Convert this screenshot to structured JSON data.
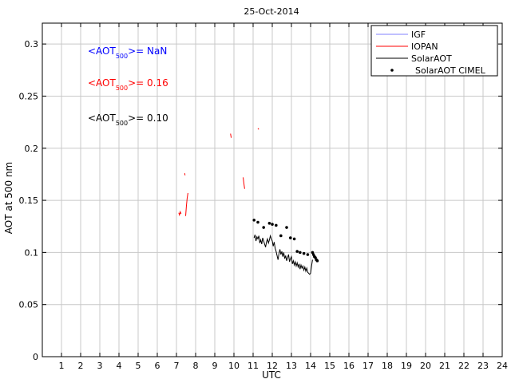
{
  "chart_data": {
    "type": "line",
    "title": "25-Oct-2014",
    "xlabel": "UTC",
    "ylabel": "AOT at 500 nm",
    "xlim": [
      0,
      24
    ],
    "ylim": [
      0,
      0.32
    ],
    "grid": true,
    "x_ticks": [
      1,
      2,
      3,
      4,
      5,
      6,
      7,
      8,
      9,
      10,
      11,
      12,
      13,
      14,
      15,
      16,
      17,
      18,
      19,
      20,
      21,
      22,
      23,
      24
    ],
    "y_ticks": [
      0,
      0.05,
      0.1,
      0.15,
      0.2,
      0.25,
      0.3
    ],
    "y_tick_labels": [
      "0",
      "0.05",
      "0.1",
      "0.15",
      "0.2",
      "0.25",
      "0.3"
    ],
    "legend_position": "top-right",
    "legend": [
      {
        "label": "IGF",
        "color": "#8080ff",
        "style": "line"
      },
      {
        "label": "IOPAN",
        "color": "#ff0000",
        "style": "line"
      },
      {
        "label": "SolarAOT",
        "color": "#000000",
        "style": "line"
      },
      {
        "label": "SolarAOT CIMEL",
        "color": "#000000",
        "style": "dot"
      }
    ],
    "annotations": [
      {
        "prefix": "<AOT",
        "sub": "500",
        "suffix": ">=  NaN",
        "color": "#0000ff"
      },
      {
        "prefix": "<AOT",
        "sub": "500",
        "suffix": ">= 0.16",
        "color": "#ff0000"
      },
      {
        "prefix": "<AOT",
        "sub": "500",
        "suffix": ">= 0.10",
        "color": "#000000"
      }
    ],
    "series": [
      {
        "name": "IOPAN",
        "color": "#ff0000",
        "segments": [
          [
            [
              7.12,
              0.138
            ],
            [
              7.16,
              0.136
            ],
            [
              7.2,
              0.139
            ],
            [
              7.24,
              0.137
            ]
          ],
          [
            [
              7.43,
              0.176
            ],
            [
              7.45,
              0.174
            ]
          ],
          [
            [
              7.48,
              0.135
            ],
            [
              7.52,
              0.145
            ],
            [
              7.56,
              0.152
            ],
            [
              7.6,
              0.157
            ]
          ],
          [
            [
              9.82,
              0.214
            ],
            [
              9.86,
              0.21
            ]
          ],
          [
            [
              10.48,
              0.172
            ],
            [
              10.52,
              0.166
            ],
            [
              10.56,
              0.161
            ]
          ],
          [
            [
              11.25,
              0.219
            ],
            [
              11.3,
              0.218
            ]
          ]
        ]
      },
      {
        "name": "SolarAOT",
        "color": "#000000",
        "x": [
          11.05,
          11.1,
          11.15,
          11.2,
          11.25,
          11.3,
          11.35,
          11.4,
          11.45,
          11.5,
          11.55,
          11.6,
          11.65,
          11.7,
          11.75,
          11.8,
          11.85,
          11.9,
          11.95,
          12.0,
          12.05,
          12.1,
          12.15,
          12.2,
          12.25,
          12.3,
          12.35,
          12.4,
          12.45,
          12.5,
          12.55,
          12.6,
          12.65,
          12.7,
          12.75,
          12.8,
          12.85,
          12.9,
          12.95,
          13.0,
          13.05,
          13.1,
          13.15,
          13.2,
          13.25,
          13.3,
          13.35,
          13.4,
          13.45,
          13.5,
          13.55,
          13.6,
          13.65,
          13.7,
          13.75,
          13.8,
          13.85,
          13.9,
          13.95,
          14.0,
          14.05,
          14.1
        ],
        "y": [
          0.114,
          0.117,
          0.111,
          0.115,
          0.113,
          0.116,
          0.109,
          0.112,
          0.108,
          0.114,
          0.111,
          0.108,
          0.105,
          0.11,
          0.113,
          0.109,
          0.112,
          0.116,
          0.113,
          0.111,
          0.106,
          0.11,
          0.104,
          0.101,
          0.097,
          0.093,
          0.099,
          0.103,
          0.098,
          0.101,
          0.096,
          0.1,
          0.094,
          0.097,
          0.092,
          0.095,
          0.098,
          0.091,
          0.094,
          0.096,
          0.089,
          0.092,
          0.088,
          0.091,
          0.087,
          0.09,
          0.086,
          0.089,
          0.084,
          0.088,
          0.085,
          0.087,
          0.083,
          0.086,
          0.082,
          0.085,
          0.081,
          0.08,
          0.079,
          0.08,
          0.087,
          0.093
        ]
      },
      {
        "name": "SolarAOT CIMEL",
        "color": "#000000",
        "x": [
          11.05,
          11.25,
          11.55,
          11.85,
          12.0,
          12.2,
          12.45,
          12.75,
          12.95,
          13.15,
          13.3,
          13.45,
          13.65,
          13.85,
          14.1,
          14.15,
          14.2,
          14.25,
          14.3,
          14.35
        ],
        "y": [
          0.131,
          0.129,
          0.124,
          0.128,
          0.127,
          0.126,
          0.116,
          0.124,
          0.114,
          0.113,
          0.101,
          0.1,
          0.099,
          0.098,
          0.1,
          0.098,
          0.096,
          0.095,
          0.093,
          0.092
        ]
      }
    ]
  }
}
